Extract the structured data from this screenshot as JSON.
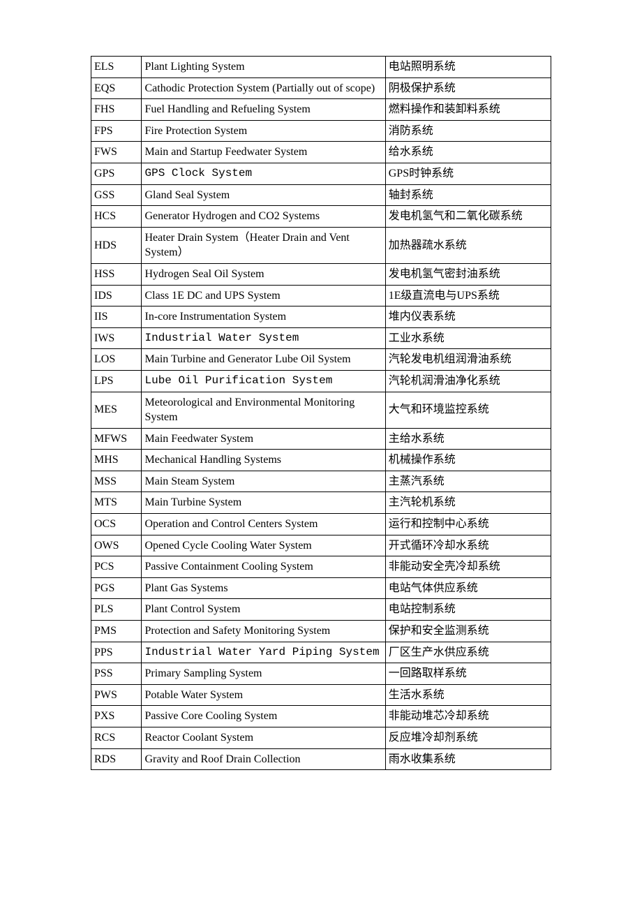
{
  "table": {
    "columns": [
      "code",
      "english",
      "chinese"
    ],
    "col_widths_pct": [
      11,
      53,
      36
    ],
    "border_color": "#000000",
    "background_color": "#ffffff",
    "text_color": "#000000",
    "font_size_pt": 12,
    "rows": [
      {
        "code": "ELS",
        "english": "Plant Lighting System",
        "chinese": "电站照明系统"
      },
      {
        "code": "EQS",
        "english": "Cathodic Protection System (Partially out of scope)",
        "chinese": "阴极保护系统"
      },
      {
        "code": "FHS",
        "english": "Fuel Handling and Refueling System",
        "chinese": "燃料操作和装卸料系统"
      },
      {
        "code": "FPS",
        "english": "Fire Protection System",
        "chinese": "消防系统"
      },
      {
        "code": "FWS",
        "english": "Main and Startup Feedwater System",
        "chinese": "给水系统"
      },
      {
        "code": "GPS",
        "english": "GPS Clock System",
        "english_mono": true,
        "chinese": "GPS时钟系统"
      },
      {
        "code": "GSS",
        "english": "Gland Seal System",
        "chinese": "轴封系统"
      },
      {
        "code": "HCS",
        "english": "Generator Hydrogen and CO2 Systems",
        "chinese": "发电机氢气和二氧化碳系统"
      },
      {
        "code": "HDS",
        "english": "Heater Drain System（Heater Drain and Vent System）",
        "chinese": "加热器疏水系统"
      },
      {
        "code": "HSS",
        "english": "Hydrogen Seal Oil System",
        "chinese": "发电机氢气密封油系统"
      },
      {
        "code": "IDS",
        "english": "Class 1E DC and UPS System",
        "chinese": "1E级直流电与UPS系统"
      },
      {
        "code": "IIS",
        "english": "In-core Instrumentation System",
        "chinese": "堆内仪表系统"
      },
      {
        "code": "IWS",
        "english": "Industrial Water System",
        "english_mono": true,
        "chinese": "工业水系统"
      },
      {
        "code": "LOS",
        "english": "Main Turbine and Generator Lube Oil System",
        "chinese": "汽轮发电机组润滑油系统"
      },
      {
        "code": "LPS",
        "english": "Lube Oil Purification System",
        "english_mono": true,
        "chinese": "汽轮机润滑油净化系统"
      },
      {
        "code": "MES",
        "english": "Meteorological and Environmental Monitoring System",
        "chinese": "大气和环境监控系统"
      },
      {
        "code": "MFWS",
        "english": " Main Feedwater System",
        "chinese": "主给水系统"
      },
      {
        "code": "MHS",
        "english": "Mechanical Handling Systems",
        "chinese": "机械操作系统"
      },
      {
        "code": "MSS",
        "english": "Main Steam System",
        "chinese": "主蒸汽系统"
      },
      {
        "code": "MTS",
        "english": "Main Turbine System",
        "chinese": "主汽轮机系统"
      },
      {
        "code": "OCS",
        "english": "Operation and Control Centers System",
        "chinese": "运行和控制中心系统"
      },
      {
        "code": "OWS",
        "english": "Opened Cycle Cooling Water System",
        "chinese": "开式循环冷却水系统"
      },
      {
        "code": "PCS",
        "english": "Passive Containment Cooling System",
        "chinese": "非能动安全壳冷却系统"
      },
      {
        "code": "PGS",
        "english": "Plant Gas Systems",
        "chinese": "电站气体供应系统"
      },
      {
        "code": "PLS",
        "english": "Plant Control System",
        "chinese": "电站控制系统"
      },
      {
        "code": "PMS",
        "english": "Protection and Safety Monitoring System",
        "chinese": "保护和安全监测系统"
      },
      {
        "code": "PPS",
        "english": "Industrial Water Yard Piping System",
        "english_mono": true,
        "chinese": "厂区生产水供应系统"
      },
      {
        "code": "PSS",
        "english": "Primary Sampling System",
        "chinese": "一回路取样系统"
      },
      {
        "code": "PWS",
        "english": "Potable Water System",
        "chinese": "生活水系统"
      },
      {
        "code": "PXS",
        "english": "Passive Core Cooling System",
        "chinese": "非能动堆芯冷却系统"
      },
      {
        "code": "RCS",
        "english": "Reactor Coolant System",
        "chinese": "反应堆冷却剂系统"
      },
      {
        "code": "RDS",
        "english": "Gravity and Roof Drain Collection",
        "chinese": "雨水收集系统"
      }
    ]
  }
}
